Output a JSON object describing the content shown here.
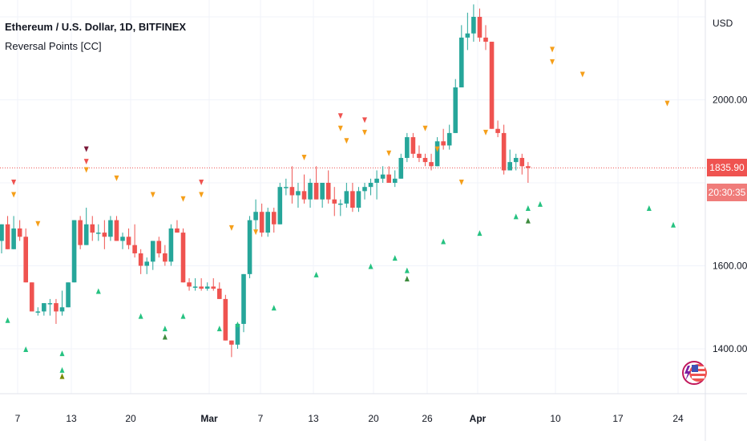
{
  "header": {
    "symbol": "Ethereum / U.S. Dollar, 1D, BITFINEX",
    "indicator": "Reversal Points [CC]",
    "currency": "USD"
  },
  "price_tag": {
    "value": "1835.90",
    "countdown": "20:30:35"
  },
  "colors": {
    "up": "#26a69a",
    "down": "#ef5350",
    "marker_orange": "#f59f1a",
    "marker_red": "#ef5350",
    "marker_dark_red": "#7b1a3a",
    "marker_green": "#26c281",
    "marker_dark_green": "#3d8b3d",
    "marker_olive": "#7a8a00"
  },
  "logo": "tradingview-author-badge-icon",
  "chart_data": {
    "type": "candlestick",
    "ylim": [
      1310,
      2320
    ],
    "y_ticks": [
      "1400.00",
      "1600.00",
      "2000.00"
    ],
    "x_tick_labels": [
      "7",
      "13",
      "20",
      "Mar",
      "7",
      "13",
      "20",
      "26",
      "Apr",
      "10",
      "17",
      "24"
    ],
    "x_tick_bold": [
      "Mar",
      "Apr"
    ],
    "last_price": 1835.9,
    "candles": [
      [
        1660,
        1700,
        1630,
        1700
      ],
      [
        1700,
        1720,
        1640,
        1640
      ],
      [
        1640,
        1720,
        1640,
        1690
      ],
      [
        1690,
        1710,
        1660,
        1670
      ],
      [
        1670,
        1690,
        1560,
        1560
      ],
      [
        1560,
        1560,
        1490,
        1490
      ],
      [
        1490,
        1500,
        1480,
        1490
      ],
      [
        1490,
        1510,
        1480,
        1510
      ],
      [
        1510,
        1520,
        1480,
        1510
      ],
      [
        1510,
        1520,
        1460,
        1490
      ],
      [
        1490,
        1540,
        1480,
        1500
      ],
      [
        1500,
        1560,
        1500,
        1560
      ],
      [
        1560,
        1710,
        1560,
        1710
      ],
      [
        1710,
        1720,
        1640,
        1650
      ],
      [
        1650,
        1740,
        1650,
        1700
      ],
      [
        1700,
        1720,
        1660,
        1680
      ],
      [
        1680,
        1700,
        1660,
        1680
      ],
      [
        1680,
        1710,
        1640,
        1670
      ],
      [
        1670,
        1720,
        1660,
        1710
      ],
      [
        1710,
        1720,
        1660,
        1660
      ],
      [
        1660,
        1680,
        1640,
        1670
      ],
      [
        1670,
        1690,
        1640,
        1650
      ],
      [
        1650,
        1700,
        1620,
        1630
      ],
      [
        1630,
        1640,
        1580,
        1600
      ],
      [
        1600,
        1620,
        1580,
        1610
      ],
      [
        1610,
        1660,
        1590,
        1660
      ],
      [
        1660,
        1670,
        1620,
        1630
      ],
      [
        1630,
        1650,
        1600,
        1610
      ],
      [
        1610,
        1700,
        1600,
        1690
      ],
      [
        1690,
        1710,
        1680,
        1680
      ],
      [
        1680,
        1690,
        1560,
        1560
      ],
      [
        1560,
        1570,
        1540,
        1550
      ],
      [
        1550,
        1570,
        1540,
        1550
      ],
      [
        1550,
        1570,
        1540,
        1545
      ],
      [
        1545,
        1560,
        1540,
        1550
      ],
      [
        1550,
        1570,
        1540,
        1545
      ],
      [
        1545,
        1560,
        1520,
        1520
      ],
      [
        1520,
        1530,
        1420,
        1420
      ],
      [
        1420,
        1420,
        1380,
        1410
      ],
      [
        1410,
        1460,
        1400,
        1460
      ],
      [
        1460,
        1580,
        1440,
        1580
      ],
      [
        1580,
        1720,
        1570,
        1710
      ],
      [
        1710,
        1760,
        1680,
        1730
      ],
      [
        1730,
        1750,
        1670,
        1680
      ],
      [
        1680,
        1740,
        1670,
        1730
      ],
      [
        1730,
        1740,
        1680,
        1700
      ],
      [
        1700,
        1800,
        1700,
        1790
      ],
      [
        1790,
        1810,
        1770,
        1790
      ],
      [
        1790,
        1840,
        1750,
        1770
      ],
      [
        1770,
        1800,
        1740,
        1780
      ],
      [
        1780,
        1820,
        1750,
        1760
      ],
      [
        1760,
        1810,
        1740,
        1800
      ],
      [
        1800,
        1840,
        1760,
        1760
      ],
      [
        1760,
        1800,
        1740,
        1800
      ],
      [
        1800,
        1830,
        1750,
        1760
      ],
      [
        1760,
        1790,
        1720,
        1750
      ],
      [
        1750,
        1760,
        1720,
        1750
      ],
      [
        1750,
        1800,
        1740,
        1780
      ],
      [
        1780,
        1800,
        1730,
        1740
      ],
      [
        1740,
        1790,
        1730,
        1780
      ],
      [
        1780,
        1800,
        1760,
        1790
      ],
      [
        1790,
        1810,
        1770,
        1800
      ],
      [
        1800,
        1830,
        1760,
        1810
      ],
      [
        1810,
        1840,
        1800,
        1820
      ],
      [
        1820,
        1840,
        1800,
        1800
      ],
      [
        1800,
        1830,
        1790,
        1810
      ],
      [
        1810,
        1870,
        1810,
        1860
      ],
      [
        1860,
        1920,
        1850,
        1910
      ],
      [
        1910,
        1920,
        1860,
        1870
      ],
      [
        1870,
        1890,
        1850,
        1860
      ],
      [
        1860,
        1870,
        1840,
        1850
      ],
      [
        1850,
        1870,
        1830,
        1840
      ],
      [
        1840,
        1910,
        1840,
        1900
      ],
      [
        1900,
        1930,
        1880,
        1890
      ],
      [
        1890,
        1940,
        1880,
        1920
      ],
      [
        1920,
        2050,
        1920,
        2030
      ],
      [
        2030,
        2180,
        2030,
        2150
      ],
      [
        2150,
        2210,
        2120,
        2160
      ],
      [
        2160,
        2230,
        2140,
        2200
      ],
      [
        2200,
        2220,
        2140,
        2150
      ],
      [
        2150,
        2180,
        2120,
        2140
      ],
      [
        2140,
        2140,
        1930,
        1930
      ],
      [
        1930,
        1950,
        1910,
        1920
      ],
      [
        1920,
        1940,
        1820,
        1830
      ],
      [
        1830,
        1880,
        1830,
        1850
      ],
      [
        1850,
        1870,
        1830,
        1860
      ],
      [
        1860,
        1870,
        1820,
        1840
      ],
      [
        1840,
        1850,
        1800,
        1835.9
      ]
    ],
    "markers": [
      {
        "i": 2,
        "pos": "above",
        "price": 1800,
        "color": "marker_red"
      },
      {
        "i": 2,
        "pos": "above",
        "price": 1770,
        "color": "marker_orange"
      },
      {
        "i": 6,
        "pos": "above",
        "price": 1700,
        "color": "marker_orange"
      },
      {
        "i": 1,
        "pos": "below",
        "price": 1470,
        "color": "marker_green"
      },
      {
        "i": 4,
        "pos": "below",
        "price": 1400,
        "color": "marker_green"
      },
      {
        "i": 10,
        "pos": "below",
        "price": 1390,
        "color": "marker_green"
      },
      {
        "i": 10,
        "pos": "below",
        "price": 1350,
        "color": "marker_green"
      },
      {
        "i": 10,
        "pos": "below",
        "price": 1335,
        "color": "marker_olive"
      },
      {
        "i": 14,
        "pos": "above",
        "price": 1880,
        "color": "marker_dark_red"
      },
      {
        "i": 14,
        "pos": "above",
        "price": 1850,
        "color": "marker_red"
      },
      {
        "i": 14,
        "pos": "above",
        "price": 1830,
        "color": "marker_orange"
      },
      {
        "i": 16,
        "pos": "below",
        "price": 1540,
        "color": "marker_green"
      },
      {
        "i": 19,
        "pos": "above",
        "price": 1810,
        "color": "marker_orange"
      },
      {
        "i": 23,
        "pos": "below",
        "price": 1480,
        "color": "marker_green"
      },
      {
        "i": 25,
        "pos": "above",
        "price": 1770,
        "color": "marker_orange"
      },
      {
        "i": 27,
        "pos": "below",
        "price": 1450,
        "color": "marker_green"
      },
      {
        "i": 27,
        "pos": "below",
        "price": 1430,
        "color": "marker_dark_green"
      },
      {
        "i": 30,
        "pos": "above",
        "price": 1760,
        "color": "marker_orange"
      },
      {
        "i": 30,
        "pos": "below",
        "price": 1480,
        "color": "marker_green"
      },
      {
        "i": 33,
        "pos": "above",
        "price": 1800,
        "color": "marker_red"
      },
      {
        "i": 33,
        "pos": "above",
        "price": 1770,
        "color": "marker_orange"
      },
      {
        "i": 36,
        "pos": "below",
        "price": 1450,
        "color": "marker_green"
      },
      {
        "i": 38,
        "pos": "above",
        "price": 1690,
        "color": "marker_orange"
      },
      {
        "i": 39,
        "pos": "below",
        "price": 1460,
        "color": "marker_green"
      },
      {
        "i": 42,
        "pos": "above",
        "price": 1680,
        "color": "marker_orange"
      },
      {
        "i": 45,
        "pos": "below",
        "price": 1500,
        "color": "marker_green"
      },
      {
        "i": 50,
        "pos": "above",
        "price": 1860,
        "color": "marker_orange"
      },
      {
        "i": 52,
        "pos": "below",
        "price": 1580,
        "color": "marker_green"
      },
      {
        "i": 56,
        "pos": "above",
        "price": 1960,
        "color": "marker_red"
      },
      {
        "i": 56,
        "pos": "above",
        "price": 1930,
        "color": "marker_orange"
      },
      {
        "i": 57,
        "pos": "above",
        "price": 1900,
        "color": "marker_orange"
      },
      {
        "i": 60,
        "pos": "above",
        "price": 1950,
        "color": "marker_red"
      },
      {
        "i": 60,
        "pos": "above",
        "price": 1920,
        "color": "marker_orange"
      },
      {
        "i": 61,
        "pos": "below",
        "price": 1600,
        "color": "marker_green"
      },
      {
        "i": 64,
        "pos": "above",
        "price": 1870,
        "color": "marker_orange"
      },
      {
        "i": 65,
        "pos": "below",
        "price": 1620,
        "color": "marker_green"
      },
      {
        "i": 67,
        "pos": "below",
        "price": 1590,
        "color": "marker_green"
      },
      {
        "i": 67,
        "pos": "below",
        "price": 1570,
        "color": "marker_dark_green"
      },
      {
        "i": 70,
        "pos": "above",
        "price": 1930,
        "color": "marker_orange"
      },
      {
        "i": 72,
        "pos": "above",
        "price": 1880,
        "color": "marker_orange"
      },
      {
        "i": 73,
        "pos": "below",
        "price": 1660,
        "color": "marker_green"
      },
      {
        "i": 76,
        "pos": "above",
        "price": 1800,
        "color": "marker_orange"
      },
      {
        "i": 79,
        "pos": "below",
        "price": 1680,
        "color": "marker_green"
      },
      {
        "i": 80,
        "pos": "above",
        "price": 1920,
        "color": "marker_orange"
      },
      {
        "i": 85,
        "pos": "below",
        "price": 1720,
        "color": "marker_green"
      },
      {
        "i": 87,
        "pos": "below",
        "price": 1740,
        "color": "marker_green"
      },
      {
        "i": 87,
        "pos": "below",
        "price": 1710,
        "color": "marker_dark_green"
      },
      {
        "i": 89,
        "pos": "below",
        "price": 1750,
        "color": "marker_green"
      },
      {
        "i": 91,
        "pos": "above",
        "price": 2120,
        "color": "marker_orange"
      },
      {
        "i": 91,
        "pos": "above",
        "price": 2090,
        "color": "marker_orange"
      },
      {
        "i": 96,
        "pos": "above",
        "price": 2060,
        "color": "marker_orange"
      },
      {
        "i": 98,
        "pos": "above",
        "price": 2310,
        "color": "marker_orange"
      },
      {
        "i": 101,
        "pos": "above",
        "price": 2300,
        "color": "marker_orange"
      },
      {
        "i": 102,
        "pos": "above",
        "price": 2290,
        "color": "marker_orange"
      },
      {
        "i": 107,
        "pos": "below",
        "price": 1740,
        "color": "marker_green"
      },
      {
        "i": 110,
        "pos": "above",
        "price": 1990,
        "color": "marker_orange"
      },
      {
        "i": 111,
        "pos": "below",
        "price": 1700,
        "color": "marker_green"
      }
    ]
  }
}
